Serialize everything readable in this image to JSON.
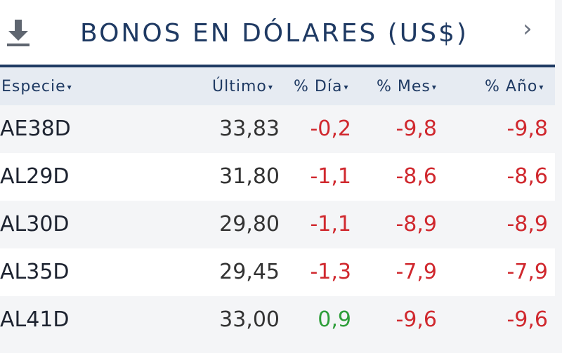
{
  "header": {
    "title": "BONOS EN DÓLARES (US$)",
    "download_icon": "download-icon",
    "next_icon": "chevron-right-icon"
  },
  "columns": [
    {
      "label": "Especie",
      "arrow": "▾"
    },
    {
      "label": "Último",
      "arrow": "▾"
    },
    {
      "label": "% Día",
      "arrow": "▾"
    },
    {
      "label": "% Mes",
      "arrow": "▾"
    },
    {
      "label": "% Año",
      "arrow": "▾"
    }
  ],
  "rows": [
    {
      "especie": "AE38D",
      "ultimo": "33,83",
      "dia": "-0,2",
      "mes": "-9,8",
      "anio": "-9,8"
    },
    {
      "especie": "AL29D",
      "ultimo": "31,80",
      "dia": "-1,1",
      "mes": "-8,6",
      "anio": "-8,6"
    },
    {
      "especie": "AL30D",
      "ultimo": "29,80",
      "dia": "-1,1",
      "mes": "-8,9",
      "anio": "-8,9"
    },
    {
      "especie": "AL35D",
      "ultimo": "29,45",
      "dia": "-1,3",
      "mes": "-7,9",
      "anio": "-7,9"
    },
    {
      "especie": "AL41D",
      "ultimo": "33,00",
      "dia": "0,9",
      "mes": "-9,6",
      "anio": "-9,6"
    }
  ],
  "colors": {
    "title": "#1f3a63",
    "header_band": "#e6ebf2",
    "negative": "#d0282e",
    "positive": "#2e9e3a"
  }
}
